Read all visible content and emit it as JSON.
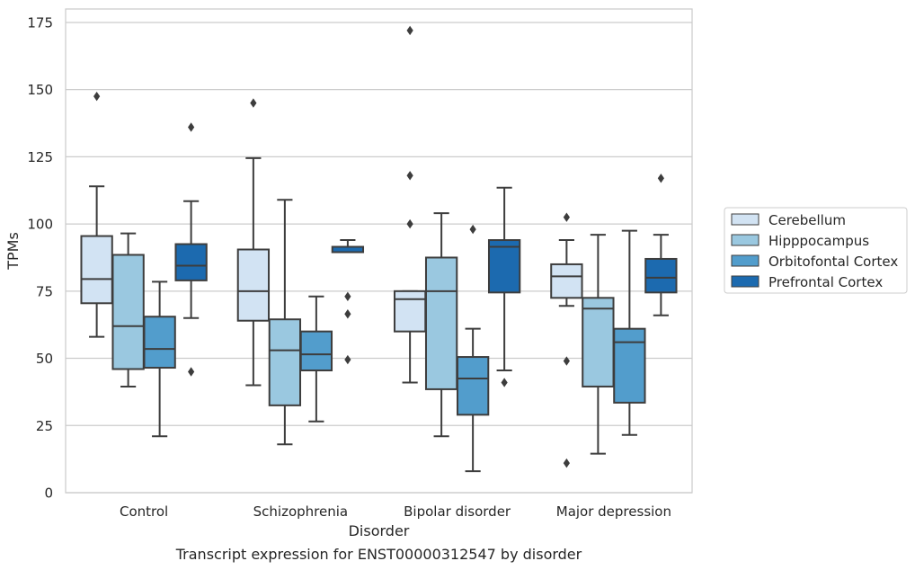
{
  "chart_data": {
    "type": "box",
    "caption": "Transcript expression for ENST00000312547 by disorder",
    "xlabel": "Disorder",
    "ylabel": "TPMs",
    "ylim": [
      0,
      180
    ],
    "yticks": [
      0,
      25,
      50,
      75,
      100,
      125,
      150,
      175
    ],
    "grid": true,
    "legend": "right",
    "categories": [
      "Control",
      "Schizophrenia",
      "Bipolar disorder",
      "Major depression"
    ],
    "series": [
      {
        "name": "Cerebellum",
        "color": "#d2e3f3",
        "boxes": [
          {
            "whislo": 58,
            "q1": 70.5,
            "med": 79.5,
            "q3": 95.5,
            "whishi": 114,
            "fliers": [
              147.5
            ]
          },
          {
            "whislo": 40,
            "q1": 64,
            "med": 75,
            "q3": 90.5,
            "whishi": 124.5,
            "fliers": [
              145
            ]
          },
          {
            "whislo": 41,
            "q1": 60,
            "med": 72,
            "q3": 75,
            "whishi": 75,
            "fliers": [
              118,
              100,
              172
            ]
          },
          {
            "whislo": 69.5,
            "q1": 72.5,
            "med": 80.5,
            "q3": 85,
            "whishi": 94,
            "fliers": [
              102.5,
              49,
              11
            ]
          }
        ]
      },
      {
        "name": "Hipppocampus",
        "color": "#9ac8e0",
        "boxes": [
          {
            "whislo": 39.5,
            "q1": 46,
            "med": 62,
            "q3": 88.5,
            "whishi": 96.5,
            "fliers": []
          },
          {
            "whislo": 18,
            "q1": 32.5,
            "med": 53,
            "q3": 64.5,
            "whishi": 109,
            "fliers": []
          },
          {
            "whislo": 21,
            "q1": 38.5,
            "med": 75,
            "q3": 87.5,
            "whishi": 104,
            "fliers": []
          },
          {
            "whislo": 14.5,
            "q1": 39.5,
            "med": 68.5,
            "q3": 72.5,
            "whishi": 96,
            "fliers": []
          }
        ]
      },
      {
        "name": "Orbitofontal Cortex",
        "color": "#529dcc",
        "boxes": [
          {
            "whislo": 21,
            "q1": 46.5,
            "med": 53.5,
            "q3": 65.5,
            "whishi": 78.5,
            "fliers": []
          },
          {
            "whislo": 26.5,
            "q1": 45.5,
            "med": 51.5,
            "q3": 60,
            "whishi": 73,
            "fliers": []
          },
          {
            "whislo": 8,
            "q1": 29,
            "med": 42.5,
            "q3": 50.5,
            "whishi": 61,
            "fliers": [
              98
            ]
          },
          {
            "whislo": 21.5,
            "q1": 33.5,
            "med": 56,
            "q3": 61,
            "whishi": 97.5,
            "fliers": []
          }
        ]
      },
      {
        "name": "Prefrontal Cortex",
        "color": "#1c6aaf",
        "boxes": [
          {
            "whislo": 65,
            "q1": 79,
            "med": 84.5,
            "q3": 92.5,
            "whishi": 108.5,
            "fliers": [
              136,
              45
            ]
          },
          {
            "whislo": 89.5,
            "q1": 89.5,
            "med": 89.5,
            "q3": 91.5,
            "whishi": 94,
            "fliers": [
              73,
              66.5,
              49.5
            ]
          },
          {
            "whislo": 45.5,
            "q1": 74.5,
            "med": 91.5,
            "q3": 94,
            "whishi": 113.5,
            "fliers": [
              41
            ]
          },
          {
            "whislo": 66,
            "q1": 74.5,
            "med": 80,
            "q3": 87,
            "whishi": 96,
            "fliers": [
              117
            ]
          }
        ]
      }
    ]
  }
}
